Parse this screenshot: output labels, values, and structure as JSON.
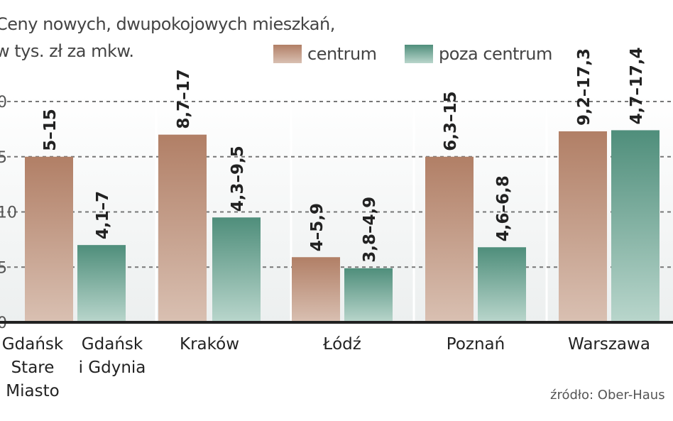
{
  "chart_data": {
    "type": "bar",
    "title_lines": [
      "Ceny nowych, dwupokojowych mieszkań,",
      "w tys. zł za mkw."
    ],
    "categories": [
      [
        "Gdańsk",
        "Stare",
        "Miasto"
      ],
      [
        "Gdańsk",
        "i Gdynia"
      ],
      [
        "Kraków"
      ],
      [
        "Łódź"
      ],
      [
        "Poznań"
      ],
      [
        "Warszawa"
      ]
    ],
    "series": [
      {
        "name": "centrum",
        "color": "#b88a72"
      },
      {
        "name": "poza centrum",
        "color": "#5e9e8a"
      }
    ],
    "bars": [
      {
        "series": 0,
        "label": "5–15",
        "value": 15
      },
      {
        "series": 1,
        "label": "4,1–7",
        "value": 7
      },
      {
        "series": 0,
        "label": "8,7–17",
        "value": 17
      },
      {
        "series": 1,
        "label": "4,3–9,5",
        "value": 9.5
      },
      {
        "series": 0,
        "label": "4–5,9",
        "value": 5.9
      },
      {
        "series": 1,
        "label": "3,8–4,9",
        "value": 4.9
      },
      {
        "series": 0,
        "label": "6,3–15",
        "value": 15
      },
      {
        "series": 1,
        "label": "4,6–6,8",
        "value": 6.8
      },
      {
        "series": 0,
        "label": "9,2–17,3",
        "value": 17.3
      },
      {
        "series": 1,
        "label": "4,7–17,4",
        "value": 17.4
      }
    ],
    "y_tick_labels": [
      "0",
      "5",
      "10",
      "5",
      "0"
    ],
    "ylim": [
      0,
      20
    ],
    "grid": true,
    "legend_position": "top-right"
  },
  "source": "źródło: Ober-Haus"
}
